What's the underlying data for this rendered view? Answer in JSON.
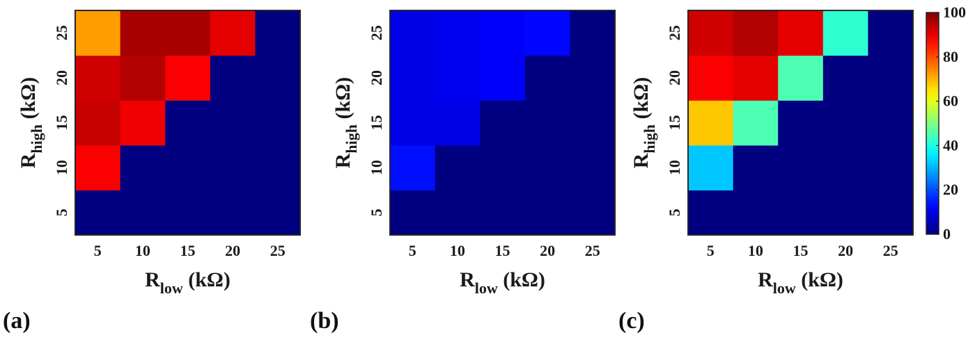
{
  "figure": {
    "panels": [
      "(a)",
      "(b)",
      "(c)"
    ],
    "xlabel_main": "R",
    "xlabel_sub": "low",
    "xlabel_unit": " (kΩ)",
    "ylabel_main": "R",
    "ylabel_sub": "high",
    "ylabel_unit": " (kΩ)"
  },
  "colorbar": {
    "min": 0,
    "max": 100,
    "ticks": [
      "0",
      "20",
      "40",
      "60",
      "80",
      "100"
    ],
    "colormap": "jet"
  },
  "chart_data": [
    {
      "type": "heatmap",
      "panel_label": "(a)",
      "x_categories": [
        "5",
        "10",
        "15",
        "20",
        "25"
      ],
      "y_categories": [
        "5",
        "10",
        "15",
        "20",
        "25"
      ],
      "xlabel": "R_low (kΩ)",
      "ylabel": "R_high (kΩ)",
      "zlim": [
        0,
        100
      ],
      "values": [
        [
          0,
          0,
          0,
          0,
          0
        ],
        [
          88,
          0,
          0,
          0,
          0
        ],
        [
          93,
          89,
          0,
          0,
          0
        ],
        [
          92,
          95,
          88,
          0,
          0
        ],
        [
          72,
          96,
          96,
          90,
          0
        ]
      ]
    },
    {
      "type": "heatmap",
      "panel_label": "(b)",
      "x_categories": [
        "5",
        "10",
        "15",
        "20",
        "25"
      ],
      "y_categories": [
        "5",
        "10",
        "15",
        "20",
        "25"
      ],
      "xlabel": "R_low (kΩ)",
      "ylabel": "R_high (kΩ)",
      "zlim": [
        0,
        100
      ],
      "values": [
        [
          0,
          0,
          0,
          0,
          0
        ],
        [
          14,
          0,
          0,
          0,
          0
        ],
        [
          10,
          10,
          0,
          0,
          0
        ],
        [
          10,
          11,
          12,
          0,
          0
        ],
        [
          10,
          11,
          12,
          13,
          0
        ]
      ]
    },
    {
      "type": "heatmap",
      "panel_label": "(c)",
      "x_categories": [
        "5",
        "10",
        "15",
        "20",
        "25"
      ],
      "y_categories": [
        "5",
        "10",
        "15",
        "20",
        "25"
      ],
      "xlabel": "R_low (kΩ)",
      "ylabel": "R_high (kΩ)",
      "zlim": [
        0,
        100
      ],
      "values": [
        [
          0,
          0,
          0,
          0,
          0
        ],
        [
          32,
          0,
          0,
          0,
          0
        ],
        [
          68,
          45,
          0,
          0,
          0
        ],
        [
          88,
          90,
          45,
          0,
          0
        ],
        [
          92,
          95,
          90,
          42,
          0
        ]
      ]
    }
  ]
}
